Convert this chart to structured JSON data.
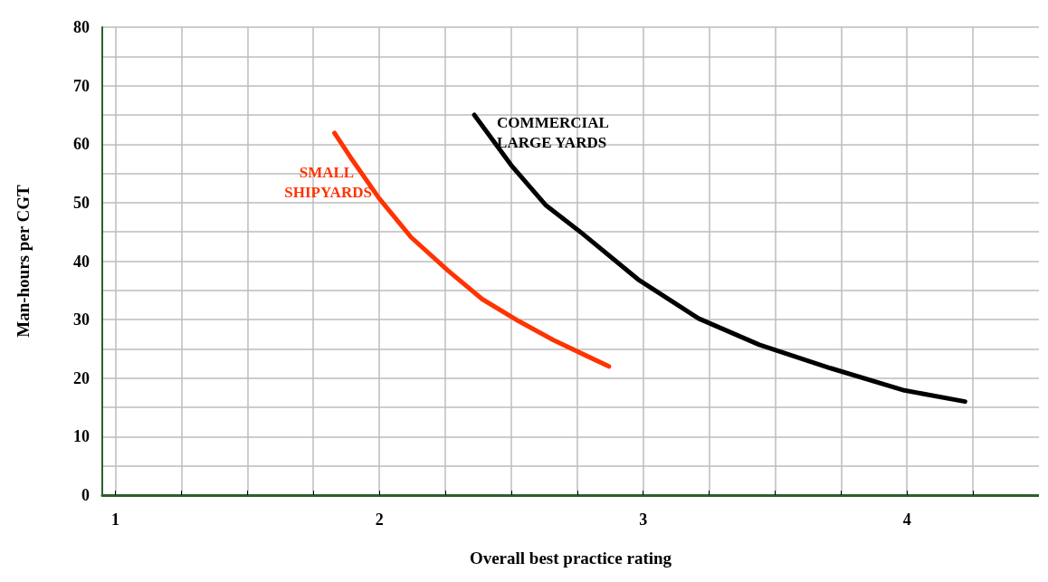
{
  "chart_data": {
    "type": "line",
    "xlabel": "Overall best practice rating",
    "ylabel": "Man-hours per CGT",
    "xlim": [
      0.95,
      4.5
    ],
    "ylim": [
      0,
      80
    ],
    "xticks": [
      1,
      {
        "value": 1.25,
        "label": null
      },
      {
        "value": 1.5,
        "label": null
      },
      {
        "value": 1.75,
        "label": null
      },
      2,
      {
        "value": 2.25,
        "label": null
      },
      {
        "value": 2.5,
        "label": null
      },
      {
        "value": 2.75,
        "label": null
      },
      3,
      {
        "value": 3.25,
        "label": null
      },
      {
        "value": 3.5,
        "label": null
      },
      {
        "value": 3.75,
        "label": null
      },
      4,
      {
        "value": 4.25,
        "label": null
      }
    ],
    "yticks": [
      0,
      {
        "value": 5,
        "label": null
      },
      10,
      {
        "value": 15,
        "label": null
      },
      20,
      {
        "value": 25,
        "label": null
      },
      30,
      {
        "value": 35,
        "label": null
      },
      40,
      {
        "value": 45,
        "label": null
      },
      50,
      {
        "value": 55,
        "label": null
      },
      60,
      {
        "value": 65,
        "label": null
      },
      70,
      {
        "value": 75,
        "label": null
      },
      80
    ],
    "grid": true,
    "legend": false,
    "marker": "none",
    "line_style": "solid",
    "series": [
      {
        "name": "SMALL SHIPYARDS",
        "color": "#ff3300",
        "x": [
          1.83,
          1.89,
          2.0,
          2.12,
          2.26,
          2.39,
          2.53,
          2.66,
          2.8,
          2.87
        ],
        "values": [
          61.9,
          57.8,
          50.7,
          44.1,
          38.4,
          33.5,
          29.7,
          26.5,
          23.5,
          22.0
        ]
      },
      {
        "name": "COMMERCIAL LARGE YARDS",
        "color": "#000000",
        "x": [
          2.36,
          2.5,
          2.63,
          2.77,
          2.98,
          3.21,
          3.44,
          3.71,
          3.99,
          4.22
        ],
        "values": [
          65.0,
          56.4,
          49.6,
          44.7,
          36.9,
          30.2,
          25.7,
          21.7,
          17.9,
          16.0
        ]
      }
    ]
  }
}
